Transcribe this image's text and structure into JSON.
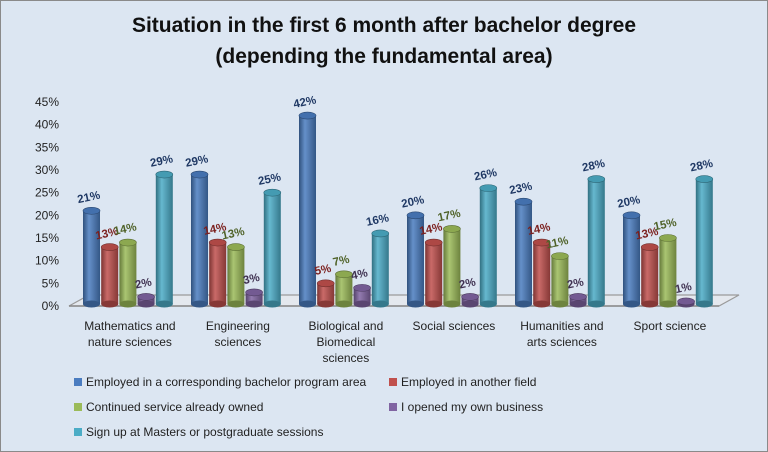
{
  "chart_data": {
    "type": "bar",
    "style": "3d-cylinder",
    "title": "Situation in the first 6 month after bachelor degree",
    "subtitle": "(depending the fundamental area)",
    "xlabel": "",
    "ylabel": "",
    "ylim": [
      0,
      45
    ],
    "yticks": [
      "0%",
      "5%",
      "10%",
      "15%",
      "20%",
      "25%",
      "30%",
      "35%",
      "40%",
      "45%"
    ],
    "ytick_values": [
      0,
      5,
      10,
      15,
      20,
      25,
      30,
      35,
      40,
      45
    ],
    "grid": false,
    "legend_position": "bottom",
    "categories": [
      [
        "Mathematics and",
        "nature sciences"
      ],
      [
        "Engineering",
        "sciences"
      ],
      [
        "Biological and",
        "Biomedical",
        "sciences"
      ],
      [
        "Social sciences"
      ],
      [
        "Humanities and",
        "arts sciences"
      ],
      [
        "Sport science"
      ]
    ],
    "series": [
      {
        "name": "Employed in a corresponding bachelor program area",
        "color": "#4a7cc0",
        "label_color": "#1f3864",
        "values": [
          21,
          29,
          42,
          20,
          23,
          20
        ]
      },
      {
        "name": "Employed in another field",
        "color": "#c0504d",
        "label_color": "#7b1f1d",
        "values": [
          13,
          14,
          5,
          14,
          14,
          13
        ]
      },
      {
        "name": "Continued service already owned",
        "color": "#9bbb59",
        "label_color": "#4f6228",
        "values": [
          14,
          13,
          7,
          17,
          11,
          15
        ]
      },
      {
        "name": "I opened my own business",
        "color": "#8064a2",
        "label_color": "#3f3151",
        "values": [
          2,
          3,
          4,
          2,
          2,
          1
        ]
      },
      {
        "name": "Sign up at Masters or postgraduate sessions",
        "color": "#4bacc6",
        "label_color": "#1f3864",
        "values": [
          29,
          25,
          16,
          26,
          28,
          28
        ]
      }
    ],
    "value_suffix": "%"
  }
}
